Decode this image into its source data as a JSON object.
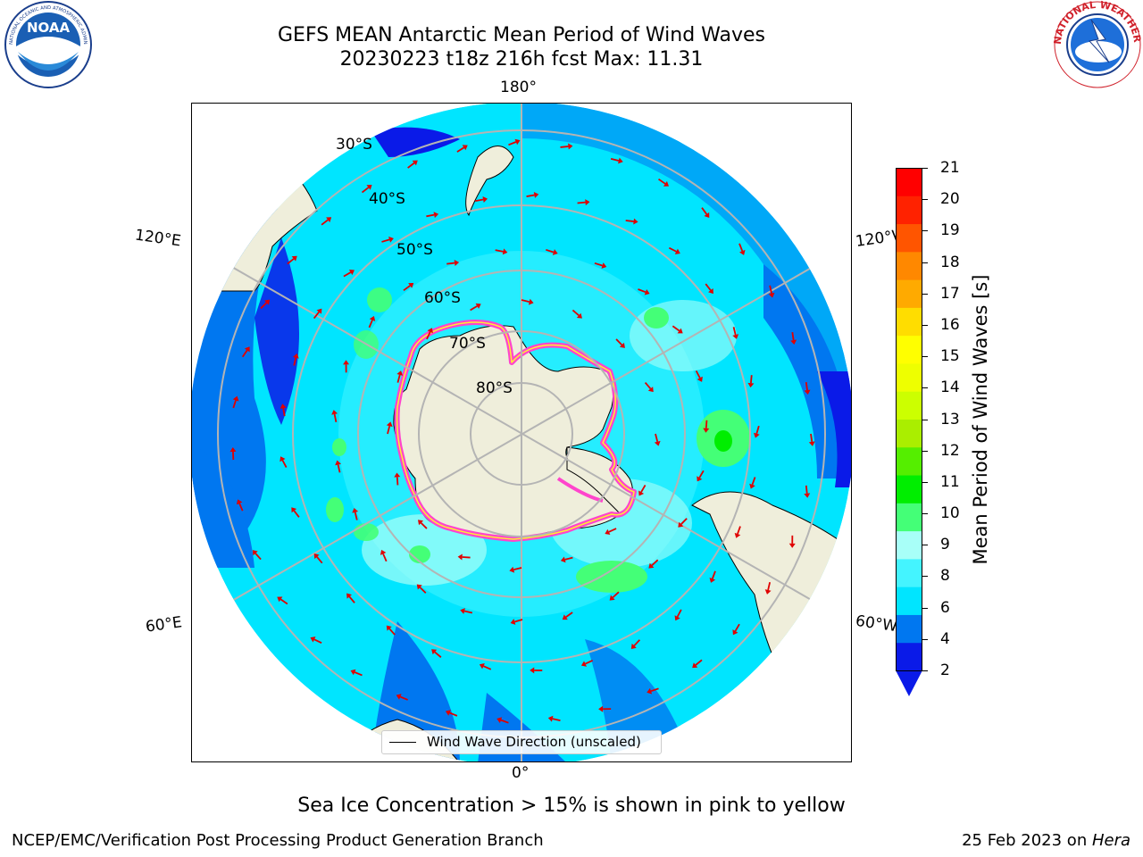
{
  "header": {
    "title_line1": "GEFS MEAN Antarctic Mean Period of Wind Waves",
    "title_line2": "20230223 t18z 216h fcst   Max: 11.31",
    "left_logo": "NOAA",
    "left_logo_ring_text": "NATIONAL OCEANIC AND ATMOSPHERIC ADMINISTRATION · U.S. DEPARTMENT OF COMMERCE",
    "right_logo_ring_text": "NATIONAL WEATHER SERVICE"
  },
  "map": {
    "projection": "south polar stereographic",
    "longitude_labels": {
      "top": "180°",
      "bottom": "0°",
      "upper_left": "120°E",
      "upper_right": "120°W",
      "lower_left": "60°E",
      "lower_right": "60°W"
    },
    "latitude_labels": [
      "30°S",
      "40°S",
      "50°S",
      "60°S",
      "70°S",
      "80°S"
    ],
    "land_color": "#efeedb",
    "gridline_color": "#b4b4b4",
    "arrow_color": "#e00000",
    "sea_ice_colors": [
      "#ff44cc",
      "#ffee33"
    ]
  },
  "legend": {
    "label": "Wind Wave Direction (unscaled)"
  },
  "colorbar": {
    "label": "Mean Period of Wind Waves [s]",
    "ticks": [
      "21",
      "20",
      "19",
      "18",
      "17",
      "16",
      "15",
      "14",
      "13",
      "12",
      "11",
      "10",
      "9",
      "8",
      "6",
      "4",
      "2"
    ],
    "colors": [
      "#0a1ae8",
      "#0077f0",
      "#00e5ff",
      "#44f4ff",
      "#a8fff8",
      "#44ff77",
      "#00ee00",
      "#55ee00",
      "#aaee00",
      "#ccff00",
      "#eeff00",
      "#ffff00",
      "#ffdd00",
      "#ffaa00",
      "#ff8800",
      "#ff5500",
      "#ff2200",
      "#ff0000"
    ],
    "under_color": "#0a1ae8"
  },
  "footer": {
    "subtitle": "Sea Ice Concentration > 15% is shown in pink to yellow",
    "credit": "NCEP/EMC/Verification Post Processing Product Generation Branch",
    "date": "25 Feb 2023 on ",
    "machine": "Hera"
  }
}
